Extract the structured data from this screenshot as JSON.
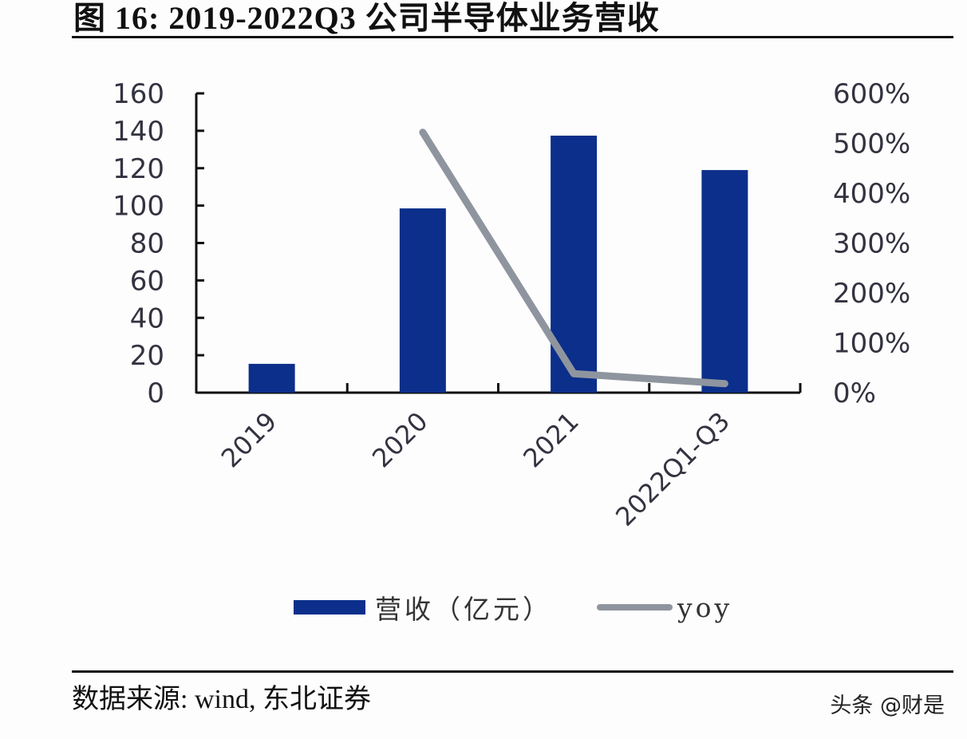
{
  "figure": {
    "title": "图 16:  2019-2022Q3 公司半导体业务营收",
    "source": "数据来源: wind, 东北证券",
    "watermark": "头条 @财是"
  },
  "legend": {
    "bar_label": "营收（亿元）",
    "line_label": "yoy"
  },
  "colors": {
    "bar": "#0b2f8a",
    "line": "#8f959e",
    "axis": "#111111",
    "tick_text": "#333340"
  },
  "chart_data": {
    "type": "bar",
    "title": "2019-2022Q3 公司半导体业务营收",
    "categories": [
      "2019",
      "2020",
      "2021",
      "2022Q1-Q3"
    ],
    "series": [
      {
        "name": "营收（亿元）",
        "type": "bar",
        "axis": "left",
        "values": [
          15.4,
          98.5,
          137.4,
          119.0
        ]
      },
      {
        "name": "yoy",
        "type": "line",
        "axis": "right",
        "values": [
          null,
          522,
          38,
          18
        ],
        "unit": "%"
      }
    ],
    "xlabel": "",
    "ylabel": "",
    "ylim": [
      0,
      160
    ],
    "yticks": [
      "0",
      "20",
      "40",
      "60",
      "80",
      "100",
      "120",
      "140",
      "160"
    ],
    "y2lim": [
      0,
      600
    ],
    "y2ticks": [
      "0%",
      "100%",
      "200%",
      "300%",
      "400%",
      "500%",
      "600%"
    ],
    "grid": false,
    "legend_position": "bottom",
    "x_tick_rotation": -45
  }
}
